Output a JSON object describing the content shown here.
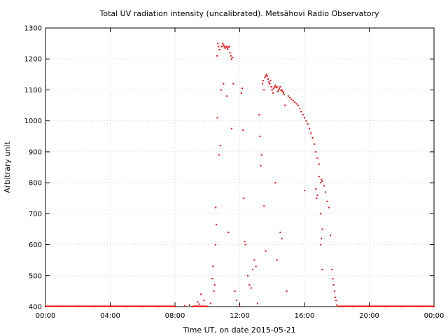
{
  "chart_data": {
    "type": "scatter",
    "title": "Total UV radiation intensity (uncalibrated). Metsähovi Radio Observatory",
    "xlabel": "Time UT, on date 2015-05-21",
    "ylabel": "Arbitrary unit",
    "xlim": [
      0,
      24
    ],
    "ylim": [
      400,
      1300
    ],
    "grid": true,
    "x_tick_values": [
      0,
      4,
      8,
      12,
      16,
      20,
      24
    ],
    "x_tick_labels": [
      "00:00",
      "04:00",
      "08:00",
      "12:00",
      "16:00",
      "20:00",
      "00:00"
    ],
    "y_tick_values": [
      400,
      500,
      600,
      700,
      800,
      900,
      1000,
      1100,
      1200,
      1300
    ],
    "y_tick_labels": [
      "400",
      "500",
      "600",
      "700",
      "800",
      "900",
      "1000",
      "1100",
      "1200",
      "1300"
    ],
    "series": [
      {
        "color": "#ff0000",
        "points": [
          [
            0.0,
            400
          ],
          [
            1.0,
            400
          ],
          [
            2.0,
            400
          ],
          [
            3.0,
            400
          ],
          [
            4.0,
            400
          ],
          [
            5.0,
            400
          ],
          [
            6.0,
            400
          ],
          [
            7.0,
            400
          ],
          [
            8.0,
            400
          ],
          [
            8.6,
            402
          ],
          [
            8.9,
            405
          ],
          [
            9.1,
            400
          ],
          [
            9.4,
            415
          ],
          [
            9.5,
            408
          ],
          [
            9.6,
            440
          ],
          [
            9.8,
            420
          ],
          [
            10.0,
            400
          ],
          [
            10.2,
            410
          ],
          [
            10.3,
            490
          ],
          [
            10.35,
            530
          ],
          [
            10.4,
            450
          ],
          [
            10.45,
            470
          ],
          [
            10.5,
            600
          ],
          [
            10.52,
            720
          ],
          [
            10.55,
            665
          ],
          [
            10.6,
            1210
          ],
          [
            10.62,
            1010
          ],
          [
            10.65,
            1250
          ],
          [
            10.7,
            1240
          ],
          [
            10.72,
            890
          ],
          [
            10.75,
            1230
          ],
          [
            10.8,
            920
          ],
          [
            10.85,
            1100
          ],
          [
            10.9,
            1240
          ],
          [
            10.95,
            1250
          ],
          [
            11.0,
            1245
          ],
          [
            11.05,
            1240
          ],
          [
            11.1,
            1235
          ],
          [
            11.15,
            1238
          ],
          [
            11.2,
            1240
          ],
          [
            11.25,
            1232
          ],
          [
            11.3,
            1238
          ],
          [
            11.35,
            1240
          ],
          [
            11.4,
            1220
          ],
          [
            11.45,
            1210
          ],
          [
            11.5,
            1200
          ],
          [
            11.55,
            1205
          ],
          [
            11.0,
            1120
          ],
          [
            11.2,
            1080
          ],
          [
            11.3,
            640
          ],
          [
            11.5,
            975
          ],
          [
            11.6,
            1120
          ],
          [
            11.7,
            450
          ],
          [
            11.8,
            420
          ],
          [
            12.0,
            400
          ],
          [
            12.1,
            1090
          ],
          [
            12.15,
            1105
          ],
          [
            12.2,
            970
          ],
          [
            12.25,
            750
          ],
          [
            12.3,
            610
          ],
          [
            12.35,
            600
          ],
          [
            12.5,
            500
          ],
          [
            12.6,
            470
          ],
          [
            12.7,
            460
          ],
          [
            12.8,
            520
          ],
          [
            12.9,
            550
          ],
          [
            13.0,
            530
          ],
          [
            13.1,
            410
          ],
          [
            13.2,
            1020
          ],
          [
            13.25,
            950
          ],
          [
            13.3,
            855
          ],
          [
            13.35,
            890
          ],
          [
            13.4,
            1120
          ],
          [
            13.45,
            1130
          ],
          [
            13.5,
            1100
          ],
          [
            13.55,
            1140
          ],
          [
            13.6,
            1145
          ],
          [
            13.65,
            1150
          ],
          [
            13.7,
            1145
          ],
          [
            13.75,
            1135
          ],
          [
            13.8,
            1125
          ],
          [
            13.85,
            1120
          ],
          [
            13.9,
            1130
          ],
          [
            13.95,
            1110
          ],
          [
            14.0,
            1100
          ],
          [
            14.05,
            1090
          ],
          [
            14.1,
            1105
          ],
          [
            14.15,
            1110
          ],
          [
            14.2,
            1115
          ],
          [
            14.25,
            1108
          ],
          [
            14.3,
            1110
          ],
          [
            14.35,
            1095
          ],
          [
            14.4,
            1100
          ],
          [
            14.45,
            1105
          ],
          [
            14.5,
            1110
          ],
          [
            14.55,
            1098
          ],
          [
            14.6,
            1100
          ],
          [
            14.65,
            1095
          ],
          [
            14.7,
            1090
          ],
          [
            14.75,
            1085
          ],
          [
            14.8,
            1050
          ],
          [
            14.2,
            800
          ],
          [
            13.5,
            725
          ],
          [
            13.6,
            580
          ],
          [
            14.3,
            550
          ],
          [
            14.5,
            640
          ],
          [
            14.6,
            620
          ],
          [
            14.9,
            450
          ],
          [
            15.0,
            1080
          ],
          [
            15.1,
            1075
          ],
          [
            15.2,
            1070
          ],
          [
            15.3,
            1065
          ],
          [
            15.4,
            1060
          ],
          [
            15.5,
            1055
          ],
          [
            15.6,
            1050
          ],
          [
            15.7,
            1040
          ],
          [
            15.8,
            1030
          ],
          [
            15.9,
            1020
          ],
          [
            16.0,
            1010
          ],
          [
            16.1,
            1000
          ],
          [
            16.2,
            990
          ],
          [
            16.3,
            975
          ],
          [
            16.4,
            960
          ],
          [
            16.5,
            945
          ],
          [
            16.6,
            925
          ],
          [
            16.7,
            900
          ],
          [
            16.8,
            880
          ],
          [
            16.9,
            860
          ],
          [
            16.0,
            775
          ],
          [
            16.7,
            780
          ],
          [
            16.75,
            750
          ],
          [
            16.8,
            760
          ],
          [
            16.9,
            820
          ],
          [
            17.0,
            800
          ],
          [
            17.05,
            810
          ],
          [
            17.1,
            805
          ],
          [
            17.2,
            790
          ],
          [
            17.3,
            770
          ],
          [
            17.4,
            740
          ],
          [
            17.5,
            720
          ],
          [
            17.6,
            630
          ],
          [
            17.0,
            700
          ],
          [
            17.1,
            650
          ],
          [
            17.05,
            620
          ],
          [
            17.0,
            600
          ],
          [
            17.1,
            520
          ],
          [
            17.7,
            520
          ],
          [
            17.75,
            490
          ],
          [
            17.8,
            470
          ],
          [
            17.85,
            450
          ],
          [
            17.9,
            430
          ],
          [
            17.95,
            420
          ],
          [
            18.0,
            405
          ],
          [
            18.1,
            400
          ],
          [
            19.0,
            400
          ],
          [
            20.0,
            400
          ],
          [
            21.0,
            400
          ],
          [
            22.0,
            400
          ],
          [
            23.0,
            400
          ],
          [
            24.0,
            400
          ]
        ]
      }
    ]
  }
}
